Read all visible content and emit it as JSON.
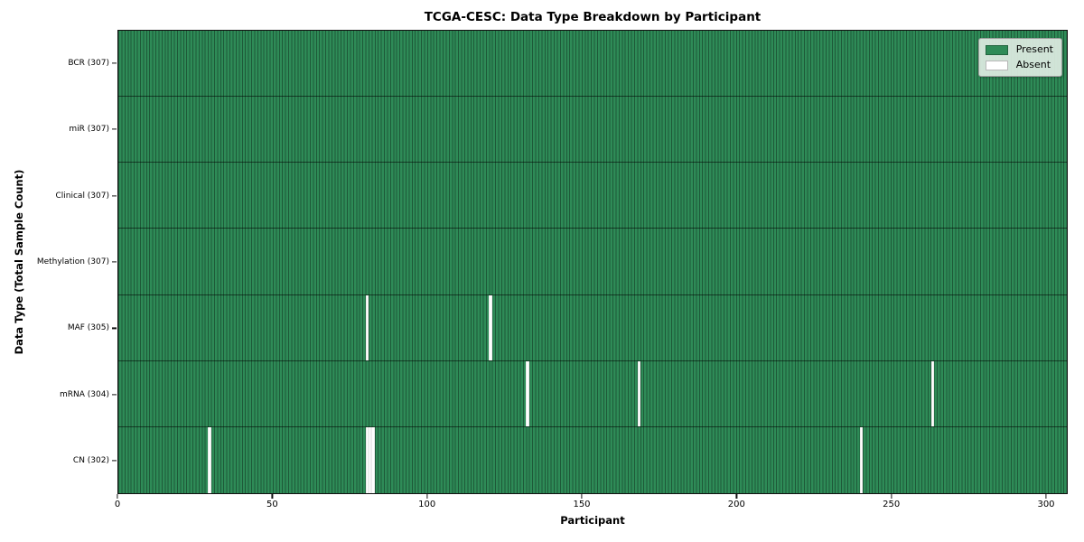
{
  "title": "TCGA-CESC: Data Type Breakdown by Participant",
  "axes": {
    "xlabel": "Participant",
    "ylabel": "Data Type (Total Sample Count)"
  },
  "legend": {
    "items": [
      {
        "label": "Present",
        "color": "#2e8b57"
      },
      {
        "label": "Absent",
        "color": "#ffffff"
      }
    ]
  },
  "colors": {
    "present": "#2e8b57",
    "absent": "#ffffff"
  },
  "chart_data": {
    "type": "heatmap",
    "title": "TCGA-CESC: Data Type Breakdown by Participant",
    "xlabel": "Participant",
    "ylabel": "Data Type (Total Sample Count)",
    "n_participants": 307,
    "x_range": [
      0,
      307
    ],
    "x_ticks": [
      0,
      50,
      100,
      150,
      200,
      250,
      300
    ],
    "grid": false,
    "legend_position": "upper right",
    "legend": [
      {
        "label": "Present",
        "color": "#2e8b57"
      },
      {
        "label": "Absent",
        "color": "#ffffff"
      }
    ],
    "rows": [
      {
        "label": "BCR (307)",
        "data_type": "BCR",
        "total_samples": 307,
        "absent_participants": []
      },
      {
        "label": "miR (307)",
        "data_type": "miR",
        "total_samples": 307,
        "absent_participants": []
      },
      {
        "label": "Clinical (307)",
        "data_type": "Clinical",
        "total_samples": 307,
        "absent_participants": []
      },
      {
        "label": "Methylation (307)",
        "data_type": "Methylation",
        "total_samples": 307,
        "absent_participants": []
      },
      {
        "label": "MAF (305)",
        "data_type": "MAF",
        "total_samples": 305,
        "absent_participants": [
          80,
          120
        ]
      },
      {
        "label": "mRNA (304)",
        "data_type": "mRNA",
        "total_samples": 304,
        "absent_participants": [
          132,
          168,
          263
        ]
      },
      {
        "label": "CN (302)",
        "data_type": "CN",
        "total_samples": 302,
        "absent_participants": [
          29,
          80,
          81,
          82,
          240
        ]
      }
    ]
  }
}
